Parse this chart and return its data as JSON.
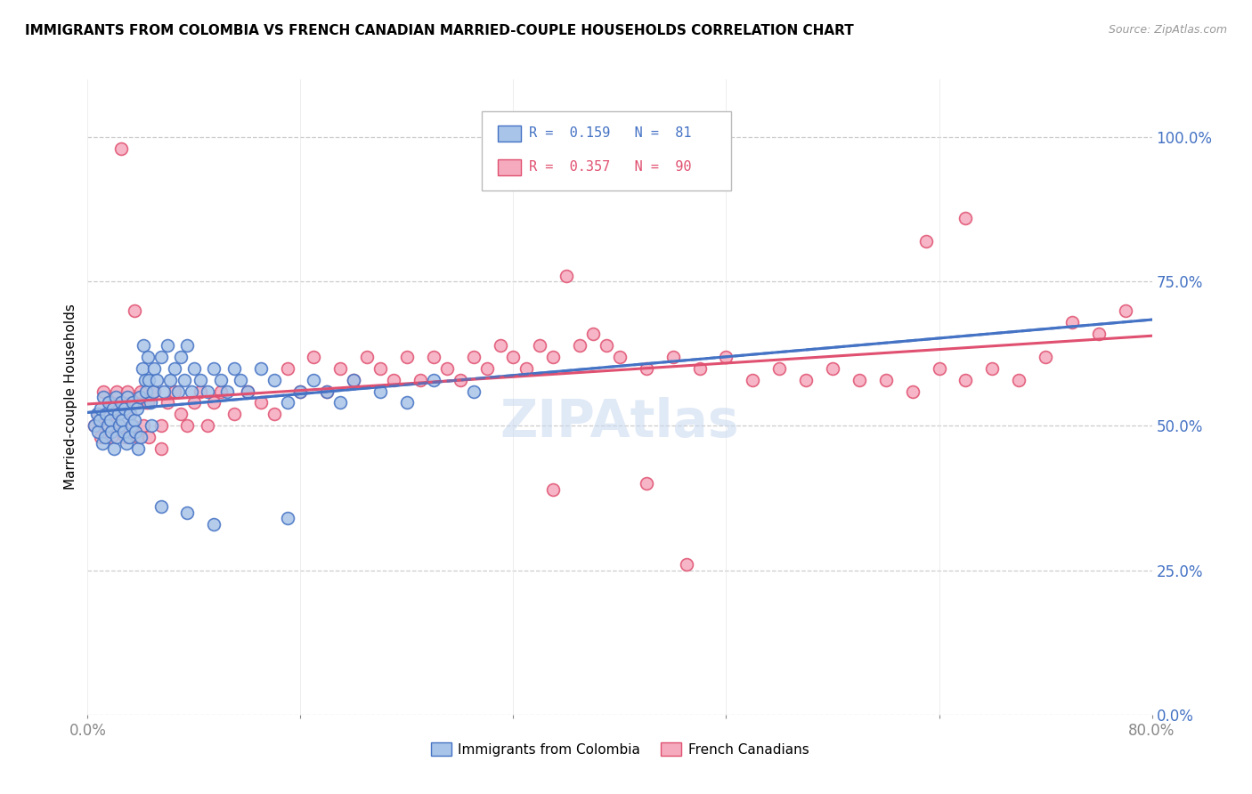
{
  "title": "IMMIGRANTS FROM COLOMBIA VS FRENCH CANADIAN MARRIED-COUPLE HOUSEHOLDS CORRELATION CHART",
  "source": "Source: ZipAtlas.com",
  "ylabel": "Married-couple Households",
  "color_blue": "#A8C4E8",
  "color_pink": "#F5AABE",
  "line_blue": "#4472C4",
  "line_pink": "#E05070",
  "watermark": "ZIPAtlas",
  "xmin": 0.0,
  "xmax": 0.8,
  "ymin": 0.0,
  "ymax": 1.1,
  "right_ytick_vals": [
    0.0,
    0.25,
    0.5,
    0.75,
    1.0
  ],
  "right_ytick_labels": [
    "0.0%",
    "25.0%",
    "50.0%",
    "75.0%",
    "100.0%"
  ],
  "xtick_vals": [
    0.0,
    0.16,
    0.32,
    0.48,
    0.64,
    0.8
  ],
  "xtick_labels": [
    "0.0%",
    "",
    "",
    "",
    "",
    "80.0%"
  ],
  "blue_x": [
    0.005,
    0.007,
    0.008,
    0.009,
    0.01,
    0.011,
    0.012,
    0.013,
    0.014,
    0.015,
    0.016,
    0.017,
    0.018,
    0.019,
    0.02,
    0.021,
    0.022,
    0.023,
    0.024,
    0.025,
    0.026,
    0.027,
    0.028,
    0.029,
    0.03,
    0.031,
    0.032,
    0.033,
    0.034,
    0.035,
    0.036,
    0.037,
    0.038,
    0.039,
    0.04,
    0.041,
    0.042,
    0.043,
    0.044,
    0.045,
    0.046,
    0.047,
    0.048,
    0.049,
    0.05,
    0.052,
    0.055,
    0.057,
    0.06,
    0.062,
    0.065,
    0.068,
    0.07,
    0.073,
    0.075,
    0.078,
    0.08,
    0.085,
    0.09,
    0.095,
    0.1,
    0.105,
    0.11,
    0.115,
    0.12,
    0.13,
    0.14,
    0.15,
    0.16,
    0.17,
    0.18,
    0.19,
    0.2,
    0.22,
    0.24,
    0.26,
    0.29,
    0.15,
    0.095,
    0.075,
    0.055
  ],
  "blue_y": [
    0.5,
    0.52,
    0.49,
    0.51,
    0.53,
    0.47,
    0.55,
    0.48,
    0.52,
    0.5,
    0.54,
    0.51,
    0.49,
    0.53,
    0.46,
    0.55,
    0.48,
    0.52,
    0.5,
    0.54,
    0.51,
    0.49,
    0.53,
    0.47,
    0.55,
    0.48,
    0.52,
    0.5,
    0.54,
    0.51,
    0.49,
    0.53,
    0.46,
    0.55,
    0.48,
    0.6,
    0.64,
    0.58,
    0.56,
    0.62,
    0.58,
    0.54,
    0.5,
    0.56,
    0.6,
    0.58,
    0.62,
    0.56,
    0.64,
    0.58,
    0.6,
    0.56,
    0.62,
    0.58,
    0.64,
    0.56,
    0.6,
    0.58,
    0.56,
    0.6,
    0.58,
    0.56,
    0.6,
    0.58,
    0.56,
    0.6,
    0.58,
    0.54,
    0.56,
    0.58,
    0.56,
    0.54,
    0.58,
    0.56,
    0.54,
    0.58,
    0.56,
    0.34,
    0.33,
    0.35,
    0.36
  ],
  "pink_x": [
    0.005,
    0.008,
    0.01,
    0.012,
    0.014,
    0.016,
    0.018,
    0.02,
    0.022,
    0.024,
    0.026,
    0.028,
    0.03,
    0.032,
    0.034,
    0.036,
    0.038,
    0.04,
    0.042,
    0.044,
    0.046,
    0.05,
    0.055,
    0.06,
    0.065,
    0.07,
    0.075,
    0.08,
    0.085,
    0.09,
    0.095,
    0.1,
    0.11,
    0.12,
    0.13,
    0.14,
    0.15,
    0.16,
    0.17,
    0.18,
    0.19,
    0.2,
    0.21,
    0.22,
    0.23,
    0.24,
    0.25,
    0.26,
    0.27,
    0.28,
    0.29,
    0.3,
    0.31,
    0.32,
    0.33,
    0.34,
    0.35,
    0.36,
    0.37,
    0.38,
    0.39,
    0.4,
    0.42,
    0.44,
    0.46,
    0.48,
    0.5,
    0.52,
    0.54,
    0.56,
    0.58,
    0.6,
    0.62,
    0.64,
    0.66,
    0.68,
    0.7,
    0.72,
    0.74,
    0.76,
    0.78,
    0.63,
    0.66,
    0.42,
    0.45,
    0.35,
    0.025,
    0.035,
    0.045,
    0.055
  ],
  "pink_y": [
    0.5,
    0.52,
    0.48,
    0.56,
    0.5,
    0.54,
    0.48,
    0.52,
    0.56,
    0.5,
    0.54,
    0.48,
    0.56,
    0.52,
    0.5,
    0.54,
    0.48,
    0.56,
    0.5,
    0.54,
    0.48,
    0.56,
    0.5,
    0.54,
    0.56,
    0.52,
    0.5,
    0.54,
    0.56,
    0.5,
    0.54,
    0.56,
    0.52,
    0.56,
    0.54,
    0.52,
    0.6,
    0.56,
    0.62,
    0.56,
    0.6,
    0.58,
    0.62,
    0.6,
    0.58,
    0.62,
    0.58,
    0.62,
    0.6,
    0.58,
    0.62,
    0.6,
    0.64,
    0.62,
    0.6,
    0.64,
    0.62,
    0.76,
    0.64,
    0.66,
    0.64,
    0.62,
    0.6,
    0.62,
    0.6,
    0.62,
    0.58,
    0.6,
    0.58,
    0.6,
    0.58,
    0.58,
    0.56,
    0.6,
    0.58,
    0.6,
    0.58,
    0.62,
    0.68,
    0.66,
    0.7,
    0.82,
    0.86,
    0.4,
    0.26,
    0.39,
    0.98,
    0.7,
    0.54,
    0.46
  ]
}
